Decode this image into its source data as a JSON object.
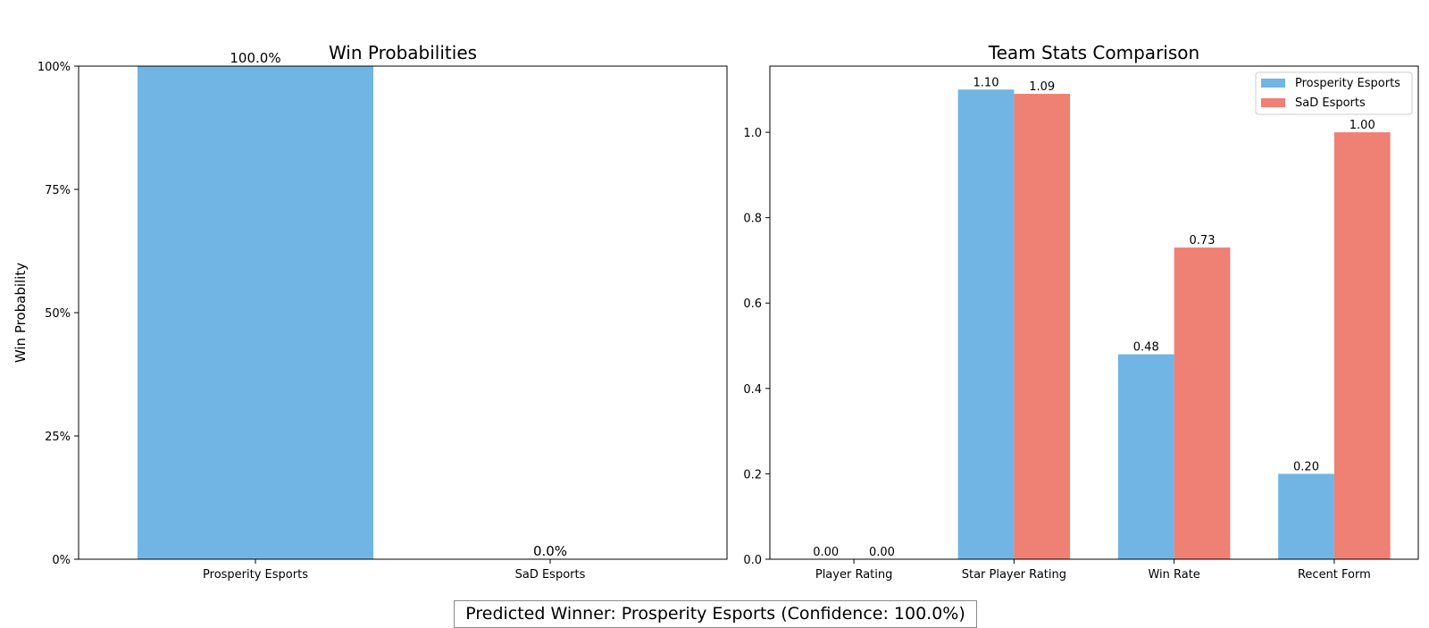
{
  "colors": {
    "prosperity": "#70B5E4",
    "sad": "#EE8074"
  },
  "chart_data": [
    {
      "type": "bar",
      "title": "Win Probabilities",
      "ylabel": "Win Probability",
      "categories": [
        "Prosperity Esports",
        "SaD Esports"
      ],
      "values": [
        100.0,
        0.0
      ],
      "data_labels": [
        "100.0%",
        "0.0%"
      ],
      "ylim": [
        0,
        100
      ],
      "yticks": [
        0,
        25,
        50,
        75,
        100
      ],
      "ytick_labels": [
        "0%",
        "25%",
        "50%",
        "75%",
        "100%"
      ],
      "grid": false
    },
    {
      "type": "bar",
      "title": "Team Stats Comparison",
      "categories": [
        "Player Rating",
        "Star Player Rating",
        "Win Rate",
        "Recent Form"
      ],
      "series": [
        {
          "name": "Prosperity Esports",
          "values": [
            0.0,
            1.1,
            0.48,
            0.2
          ],
          "labels": [
            "0.00",
            "1.10",
            "0.48",
            "0.20"
          ]
        },
        {
          "name": "SaD Esports",
          "values": [
            0.0,
            1.09,
            0.73,
            1.0
          ],
          "labels": [
            "0.00",
            "1.09",
            "0.73",
            "1.00"
          ]
        }
      ],
      "ylim": [
        0,
        1.155
      ],
      "yticks": [
        0,
        0.2,
        0.4,
        0.6,
        0.8,
        1.0
      ],
      "ytick_labels": [
        "0.0",
        "0.2",
        "0.4",
        "0.6",
        "0.8",
        "1.0"
      ],
      "legend": "top-right",
      "grid": false
    }
  ],
  "caption": "Predicted Winner: Prosperity Esports (Confidence: 100.0%)"
}
